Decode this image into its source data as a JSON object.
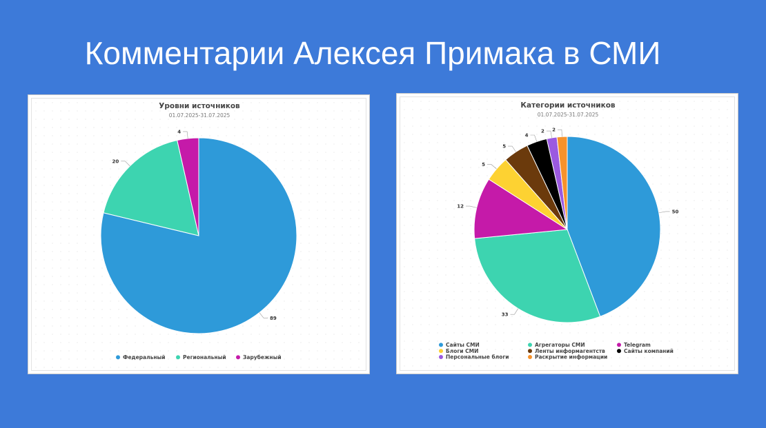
{
  "page_title": "Комментарии Алексея Примака в СМИ",
  "chart_data": [
    {
      "type": "pie",
      "title": "Уровни источников",
      "subtitle": "01.07.2025-31.07.2025",
      "legend_position": "bottom",
      "slices": [
        {
          "label": "Федеральный",
          "value": 89,
          "color": "#2e9ad9"
        },
        {
          "label": "Региональный",
          "value": 20,
          "color": "#3dd4b0"
        },
        {
          "label": "Зарубежный",
          "value": 4,
          "color": "#c51aa9"
        }
      ]
    },
    {
      "type": "pie",
      "title": "Категории источников",
      "subtitle": "01.07.2025-31.07.2025",
      "legend_position": "bottom",
      "slices": [
        {
          "label": "Сайты СМИ",
          "value": 50,
          "color": "#2e9ad9"
        },
        {
          "label": "Агрегаторы СМИ",
          "value": 33,
          "color": "#3dd4b0"
        },
        {
          "label": "Telegram",
          "value": 12,
          "color": "#c51aa9"
        },
        {
          "label": "Блоги СМИ",
          "value": 5,
          "color": "#fdd232"
        },
        {
          "label": "Ленты информагентств",
          "value": 5,
          "color": "#6b3a0c"
        },
        {
          "label": "Сайты компаний",
          "value": 4,
          "color": "#000000"
        },
        {
          "label": "Персональные блоги",
          "value": 2,
          "color": "#9b59e0"
        },
        {
          "label": "Раскрытие информации",
          "value": 2,
          "color": "#f7922b"
        }
      ]
    }
  ]
}
